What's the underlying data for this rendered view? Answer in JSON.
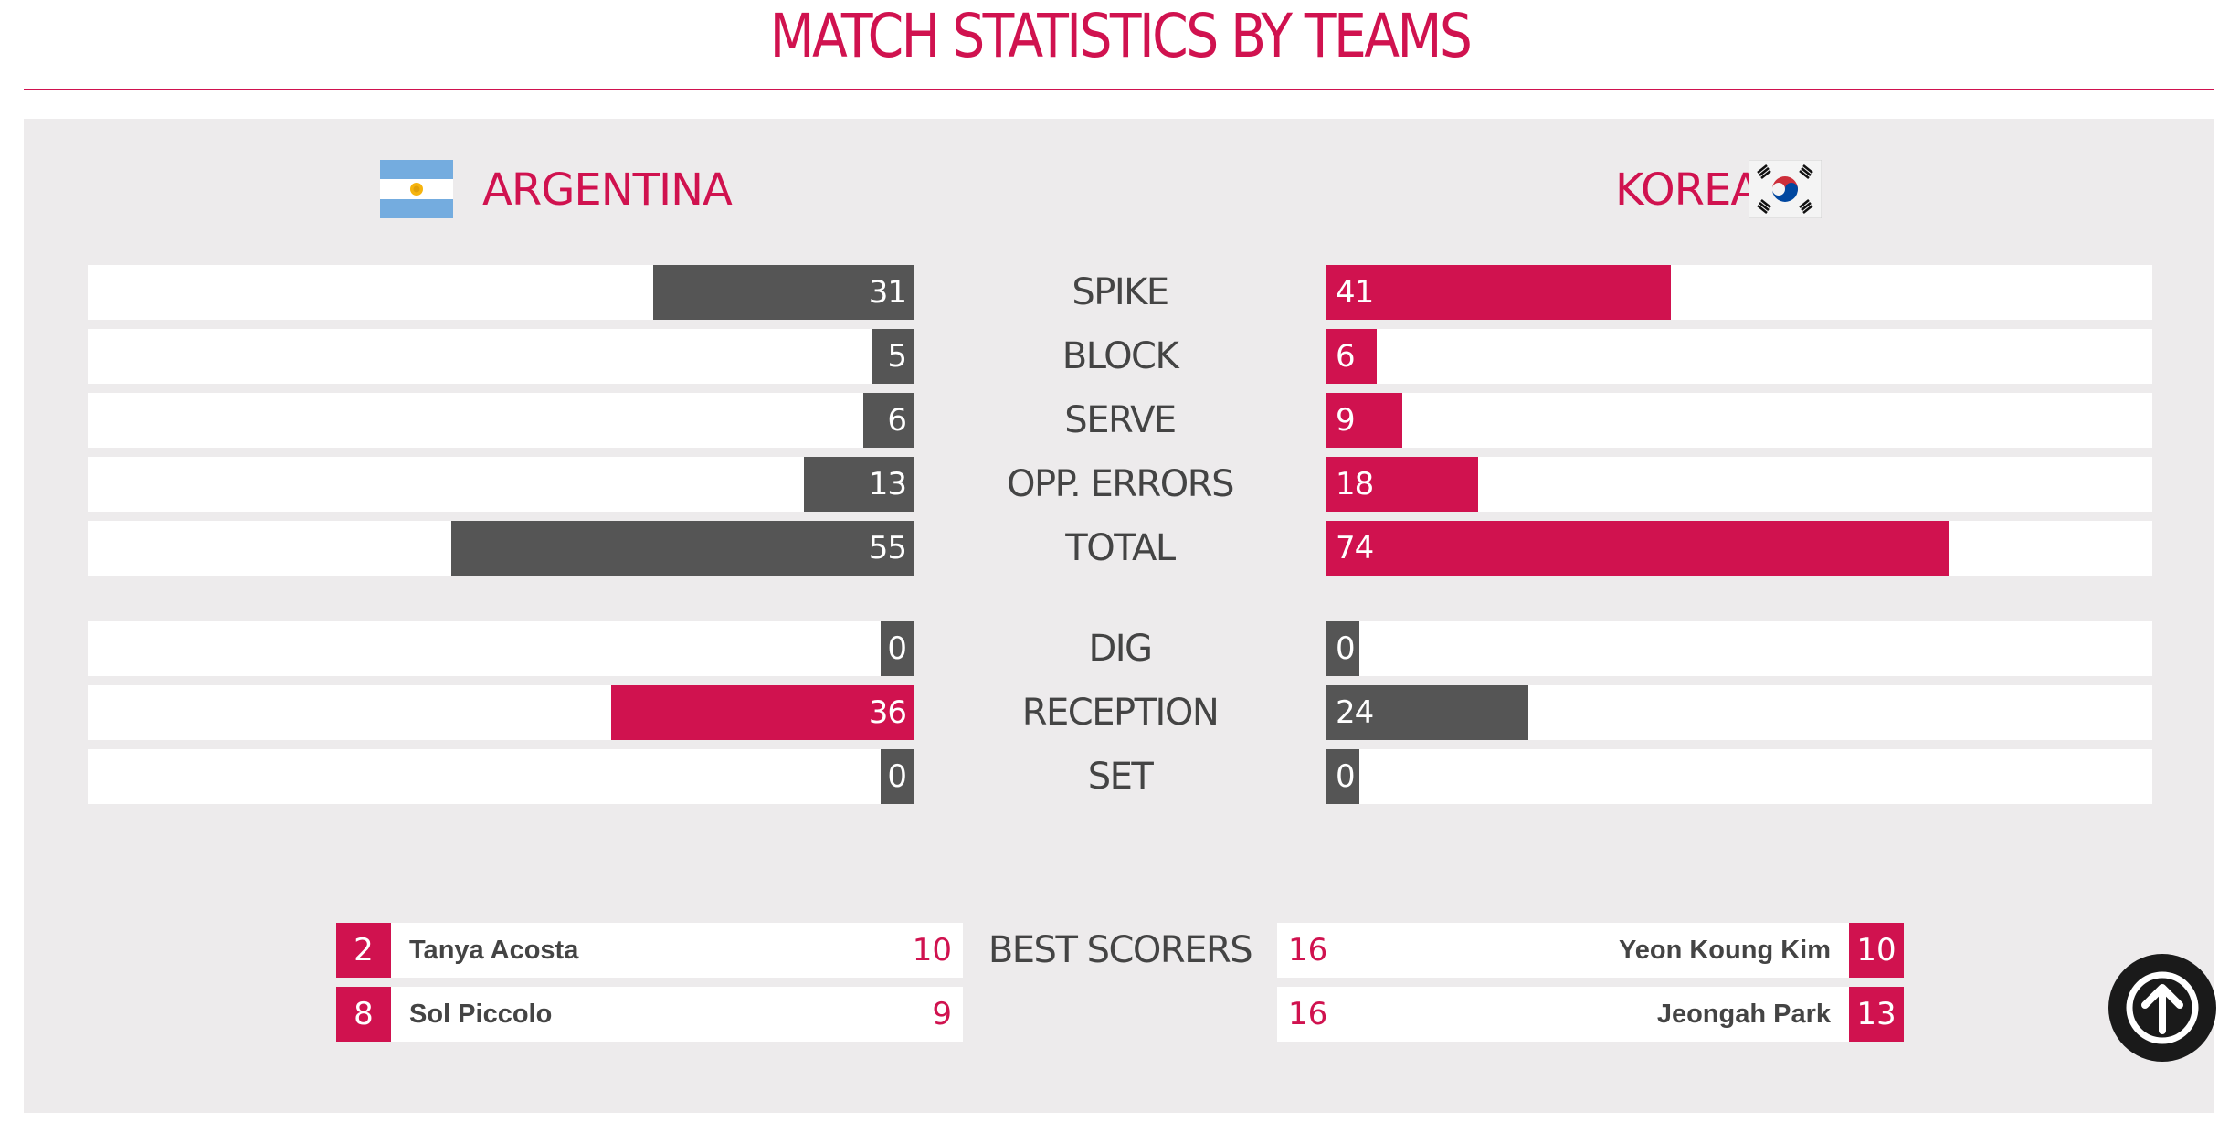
{
  "title": "MATCH STATISTICS BY TEAMS",
  "colors": {
    "accent": "#d0124f",
    "dark_bar": "#555555",
    "panel": "#edebec"
  },
  "teams": {
    "left": {
      "name": "ARGENTINA",
      "flag_icon": "argentina-flag-icon"
    },
    "right": {
      "name": "KOREA",
      "flag_icon": "korea-flag-icon"
    }
  },
  "stats": [
    {
      "label": "SPIKE",
      "left": 31,
      "right": 41,
      "leftColor": "dark",
      "rightColor": "pink"
    },
    {
      "label": "BLOCK",
      "left": 5,
      "right": 6,
      "leftColor": "dark",
      "rightColor": "pink"
    },
    {
      "label": "SERVE",
      "left": 6,
      "right": 9,
      "leftColor": "dark",
      "rightColor": "pink"
    },
    {
      "label": "OPP. ERRORS",
      "left": 13,
      "right": 18,
      "leftColor": "dark",
      "rightColor": "pink"
    },
    {
      "label": "TOTAL",
      "left": 55,
      "right": 74,
      "leftColor": "dark",
      "rightColor": "pink"
    },
    {
      "label": "DIG",
      "left": 0,
      "right": 0,
      "leftColor": "dark",
      "rightColor": "dark"
    },
    {
      "label": "RECEPTION",
      "left": 36,
      "right": 24,
      "leftColor": "pink",
      "rightColor": "dark"
    },
    {
      "label": "SET",
      "left": 0,
      "right": 0,
      "leftColor": "dark",
      "rightColor": "dark"
    }
  ],
  "best_scorers": {
    "label": "BEST SCORERS",
    "left": [
      {
        "number": "2",
        "name": "Tanya Acosta",
        "points": "10"
      },
      {
        "number": "8",
        "name": "Sol Piccolo",
        "points": "9"
      }
    ],
    "right": [
      {
        "number": "10",
        "name": "Yeon Koung Kim",
        "points": "16"
      },
      {
        "number": "13",
        "name": "Jeongah Park",
        "points": "16"
      }
    ]
  },
  "scroll_top_icon": "arrow-up-circle-icon"
}
